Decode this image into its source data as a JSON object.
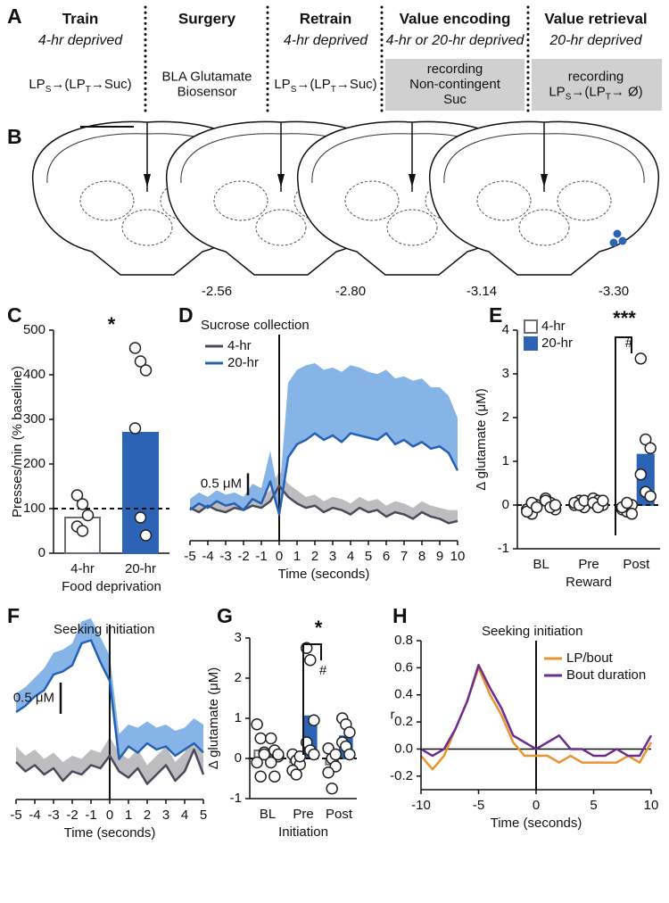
{
  "panel_labels": [
    "A",
    "B",
    "C",
    "D",
    "E",
    "F",
    "G",
    "H"
  ],
  "panel_a": {
    "columns": [
      {
        "title": "Train",
        "subtitle": "4-hr deprived",
        "lines": [
          [
            {
              "text": "LP"
            },
            {
              "sub": "S"
            },
            {
              "text": "→(LP"
            },
            {
              "sub": "T"
            },
            {
              "text": "→Suc)"
            }
          ]
        ]
      },
      {
        "title": "Surgery",
        "lines": [
          [
            {
              "text": "BLA Glutamate"
            }
          ],
          [
            {
              "text": "Biosensor"
            }
          ]
        ]
      },
      {
        "title": "Retrain",
        "subtitle": "4-hr deprived",
        "lines": [
          [
            {
              "text": "LP"
            },
            {
              "sub": "S"
            },
            {
              "text": "→(LP"
            },
            {
              "sub": "T"
            },
            {
              "text": "→Suc)"
            }
          ]
        ]
      },
      {
        "title": "Value encoding",
        "subtitle": "4-hr or 20-hr deprived",
        "boxed": true,
        "lines": [
          [
            {
              "text": "recording"
            }
          ],
          [
            {
              "text": "Non-contingent"
            }
          ],
          [
            {
              "text": "Suc"
            }
          ]
        ]
      },
      {
        "title": "Value retrieval",
        "subtitle": "20-hr deprived",
        "boxed": true,
        "lines": [
          [
            {
              "text": "recording"
            }
          ],
          [
            {
              "text": "LP"
            },
            {
              "sub": "S"
            },
            {
              "text": "→(LP"
            },
            {
              "sub": "T"
            },
            {
              "text": "→ Ø)"
            }
          ]
        ]
      }
    ]
  },
  "panel_b": {
    "labels": [
      "-2.56",
      "-2.80",
      "-3.14",
      "-3.30"
    ]
  },
  "chart_data": [
    {
      "type": "bar",
      "ylabel": "Presses/min (% baseline)",
      "xlabel": "Food deprivation",
      "categories": [
        "4-hr",
        "20-hr"
      ],
      "values": [
        80,
        270
      ],
      "colors": [
        "#ffffff",
        "#2c63b5"
      ],
      "edge_colors": [
        "#6d6d78",
        "#2c63b5"
      ],
      "points": [
        [
          130,
          110,
          85,
          60,
          50
        ],
        [
          460,
          430,
          410,
          280,
          80,
          40
        ]
      ],
      "ylim": [
        0,
        500
      ],
      "yticks": [
        0,
        100,
        200,
        300,
        400,
        500
      ],
      "reference_line": 100,
      "annotations": [
        "*"
      ]
    },
    {
      "type": "line",
      "annotation": "Sucrose collection",
      "xlabel": "Time (seconds)",
      "x": [
        -5,
        -4.5,
        -4,
        -3.5,
        -3,
        -2.5,
        -2,
        -1.5,
        -1,
        -0.5,
        0,
        0.5,
        1,
        1.5,
        2,
        2.5,
        3,
        3.5,
        4,
        4.5,
        5,
        5.5,
        6,
        6.5,
        7,
        7.5,
        8,
        8.5,
        9,
        9.5,
        10
      ],
      "series": [
        {
          "name": "4-hr",
          "color": "#4a4a5c",
          "band_color": "#bdbdc0",
          "values": [
            0.05,
            -0.05,
            0.1,
            0.0,
            -0.05,
            0.05,
            0.0,
            0.1,
            0.05,
            0.2,
            0.55,
            0.3,
            0.15,
            0.05,
            0.1,
            -0.05,
            0.05,
            0.0,
            -0.1,
            0.05,
            -0.05,
            0.0,
            -0.15,
            -0.05,
            -0.1,
            -0.2,
            -0.05,
            -0.15,
            -0.2,
            -0.3,
            -0.25
          ],
          "upper": [
            0.25,
            0.15,
            0.3,
            0.25,
            0.2,
            0.3,
            0.25,
            0.35,
            0.3,
            0.45,
            0.9,
            0.6,
            0.45,
            0.3,
            0.35,
            0.2,
            0.3,
            0.25,
            0.15,
            0.3,
            0.2,
            0.25,
            0.1,
            0.2,
            0.15,
            0.05,
            0.2,
            0.1,
            0.05,
            0.0,
            0.0
          ]
        },
        {
          "name": "20-hr",
          "color": "#2461b5",
          "band_color": "#86b4e6",
          "values": [
            0.0,
            0.15,
            0.05,
            0.2,
            0.1,
            0.15,
            0.0,
            0.25,
            0.15,
            0.65,
            -0.1,
            1.2,
            1.5,
            1.6,
            1.75,
            1.6,
            1.7,
            1.55,
            1.75,
            1.7,
            1.65,
            1.6,
            1.75,
            1.5,
            1.6,
            1.45,
            1.55,
            1.4,
            1.45,
            1.3,
            0.9
          ],
          "upper": [
            0.25,
            0.4,
            0.3,
            0.45,
            0.35,
            0.4,
            0.3,
            0.6,
            0.5,
            1.35,
            0.3,
            2.9,
            3.2,
            3.3,
            3.35,
            3.2,
            3.25,
            3.15,
            3.3,
            3.25,
            3.15,
            3.1,
            3.2,
            3.0,
            3.05,
            2.95,
            3.0,
            2.8,
            2.8,
            2.6,
            2.1
          ]
        }
      ],
      "xlim": [
        -5,
        10
      ],
      "xticks": [
        -5,
        -4,
        -3,
        -2,
        -1,
        0,
        1,
        2,
        3,
        4,
        5,
        6,
        7,
        8,
        9,
        10
      ],
      "ylim": [
        -0.7,
        4.0
      ],
      "vline": 0,
      "scale_bar": {
        "value": 0.5,
        "label": "0.5 μM"
      }
    },
    {
      "type": "bar",
      "ylabel": "Δ glutamate (μM)",
      "xlabel": "Reward",
      "categories": [
        "BL",
        "Pre",
        "Post"
      ],
      "series": [
        {
          "name": "4-hr",
          "color": "#ffffff",
          "edge_color": "#6d6d78",
          "values": [
            -0.05,
            0.05,
            -0.05
          ],
          "points": [
            [
              -0.1,
              -0.2,
              0.0,
              -0.15,
              0.05,
              -0.05
            ],
            [
              0.0,
              0.1,
              -0.05,
              0.05,
              0.0,
              0.1
            ],
            [
              -0.1,
              -0.15,
              0.0,
              -0.05,
              0.05,
              -0.2
            ]
          ]
        },
        {
          "name": "20-hr",
          "color": "#2c63b5",
          "edge_color": "#2c63b5",
          "values": [
            0.05,
            0.05,
            1.15
          ],
          "points": [
            [
              0.15,
              0.05,
              -0.1,
              0.1,
              -0.05,
              0.0
            ],
            [
              0.15,
              0.1,
              0.0,
              0.05,
              -0.05,
              0.1
            ],
            [
              3.35,
              1.5,
              1.3,
              0.7,
              0.3,
              0.2
            ]
          ]
        }
      ],
      "ylim": [
        -1,
        4
      ],
      "yticks": [
        -1,
        0,
        1,
        2,
        3,
        4
      ],
      "reference_line": 0,
      "annotations": [
        "***",
        "#"
      ]
    },
    {
      "type": "line",
      "annotation": "Seeking initiation",
      "xlabel": "Time (seconds)",
      "x": [
        -5,
        -4.5,
        -4,
        -3.5,
        -3,
        -2.5,
        -2,
        -1.5,
        -1,
        -0.5,
        0,
        0.5,
        1,
        1.5,
        2,
        2.5,
        3,
        3.5,
        4,
        4.5,
        5
      ],
      "series": [
        {
          "color": "#4a4a5c",
          "band_color": "#bdbdc0",
          "values": [
            -0.8,
            -0.95,
            -0.85,
            -1.0,
            -0.9,
            -1.1,
            -0.95,
            -1.0,
            -0.85,
            -0.9,
            -0.7,
            -0.95,
            -1.05,
            -0.9,
            -1.15,
            -1.0,
            -0.85,
            -1.1,
            -0.95,
            -0.6,
            -1.0
          ],
          "upper": [
            -0.55,
            -0.7,
            -0.6,
            -0.75,
            -0.65,
            -0.8,
            -0.7,
            -0.75,
            -0.6,
            -0.65,
            -0.4,
            -0.65,
            -0.75,
            -0.6,
            -0.85,
            -0.7,
            -0.55,
            -0.8,
            -0.65,
            -0.3,
            -0.7
          ]
        },
        {
          "color": "#2461b5",
          "band_color": "#86b4e6",
          "values": [
            0.0,
            0.1,
            0.25,
            0.35,
            0.6,
            0.65,
            0.75,
            1.1,
            1.15,
            0.8,
            0.5,
            -0.75,
            -0.55,
            -0.65,
            -0.5,
            -0.6,
            -0.55,
            -0.7,
            -0.6,
            -0.5,
            -0.65
          ],
          "upper": [
            0.3,
            0.4,
            0.55,
            0.7,
            0.95,
            1.0,
            1.1,
            1.45,
            1.5,
            1.2,
            0.9,
            -0.35,
            -0.2,
            -0.25,
            -0.15,
            -0.25,
            -0.2,
            -0.3,
            -0.25,
            -0.1,
            -0.2
          ]
        }
      ],
      "xlim": [
        -5,
        5
      ],
      "xticks": [
        -5,
        -4,
        -3,
        -2,
        -1,
        0,
        1,
        2,
        3,
        4,
        5
      ],
      "ylim": [
        -1.4,
        1.4
      ],
      "vline": 0,
      "scale_bar": {
        "value": 0.5,
        "label": "0.5 μM"
      }
    },
    {
      "type": "bar",
      "ylabel": "Δ glutamate (μM)",
      "xlabel": "Initiation",
      "categories": [
        "BL",
        "Pre",
        "Post"
      ],
      "series": [
        {
          "name": "4-hr",
          "color": "#ffffff",
          "edge_color": "#6d6d78",
          "values": [
            0.2,
            -0.1,
            -0.15
          ],
          "points": [
            [
              0.85,
              0.5,
              0.15,
              -0.1,
              -0.45,
              0.1
            ],
            [
              0.1,
              -0.05,
              -0.15,
              -0.3,
              -0.4,
              0.05
            ],
            [
              0.25,
              0.0,
              -0.2,
              -0.35,
              -0.75,
              0.1
            ]
          ]
        },
        {
          "name": "20-hr",
          "color": "#2c63b5",
          "edge_color": "#2c63b5",
          "values": [
            0.1,
            1.05,
            0.55
          ],
          "points": [
            [
              0.5,
              0.2,
              0.05,
              -0.1,
              -0.45,
              0.1
            ],
            [
              2.75,
              2.45,
              0.95,
              0.4,
              0.2,
              0.1
            ],
            [
              1.0,
              0.85,
              0.65,
              0.4,
              0.3,
              0.1
            ]
          ]
        }
      ],
      "ylim": [
        -1,
        3
      ],
      "yticks": [
        -1,
        0,
        1,
        2,
        3
      ],
      "reference_line": 0,
      "annotations": [
        "*",
        "#"
      ]
    },
    {
      "type": "line",
      "annotation": "Seeking initiation",
      "xlabel": "Time (seconds)",
      "ylabel": "r",
      "x": [
        -10,
        -9,
        -8,
        -7,
        -6,
        -5,
        -4,
        -3,
        -2,
        -1,
        0,
        1,
        2,
        3,
        4,
        5,
        6,
        7,
        8,
        9,
        10
      ],
      "series": [
        {
          "name": "LP/bout",
          "color": "#e8952f",
          "values": [
            -0.05,
            -0.15,
            -0.05,
            0.15,
            0.35,
            0.6,
            0.4,
            0.25,
            0.05,
            -0.05,
            -0.05,
            -0.05,
            -0.1,
            -0.05,
            -0.1,
            -0.1,
            -0.1,
            -0.1,
            -0.05,
            -0.1,
            0.05
          ]
        },
        {
          "name": "Bout duration",
          "color": "#6b2d8f",
          "values": [
            0.0,
            -0.05,
            0.0,
            0.15,
            0.35,
            0.62,
            0.45,
            0.3,
            0.1,
            0.05,
            0.0,
            0.05,
            0.1,
            0.0,
            0.0,
            -0.05,
            -0.05,
            0.0,
            -0.05,
            -0.05,
            0.1
          ]
        }
      ],
      "xlim": [
        -10,
        10
      ],
      "xticks": [
        -10,
        -5,
        0,
        5,
        10
      ],
      "ylim": [
        -0.3,
        0.8
      ],
      "yticks": [
        -0.2,
        {
          "value": 0,
          "label": "0.0"
        },
        0.2,
        0.4,
        0.6,
        0.8
      ],
      "vline": 0,
      "hline": 0
    }
  ]
}
